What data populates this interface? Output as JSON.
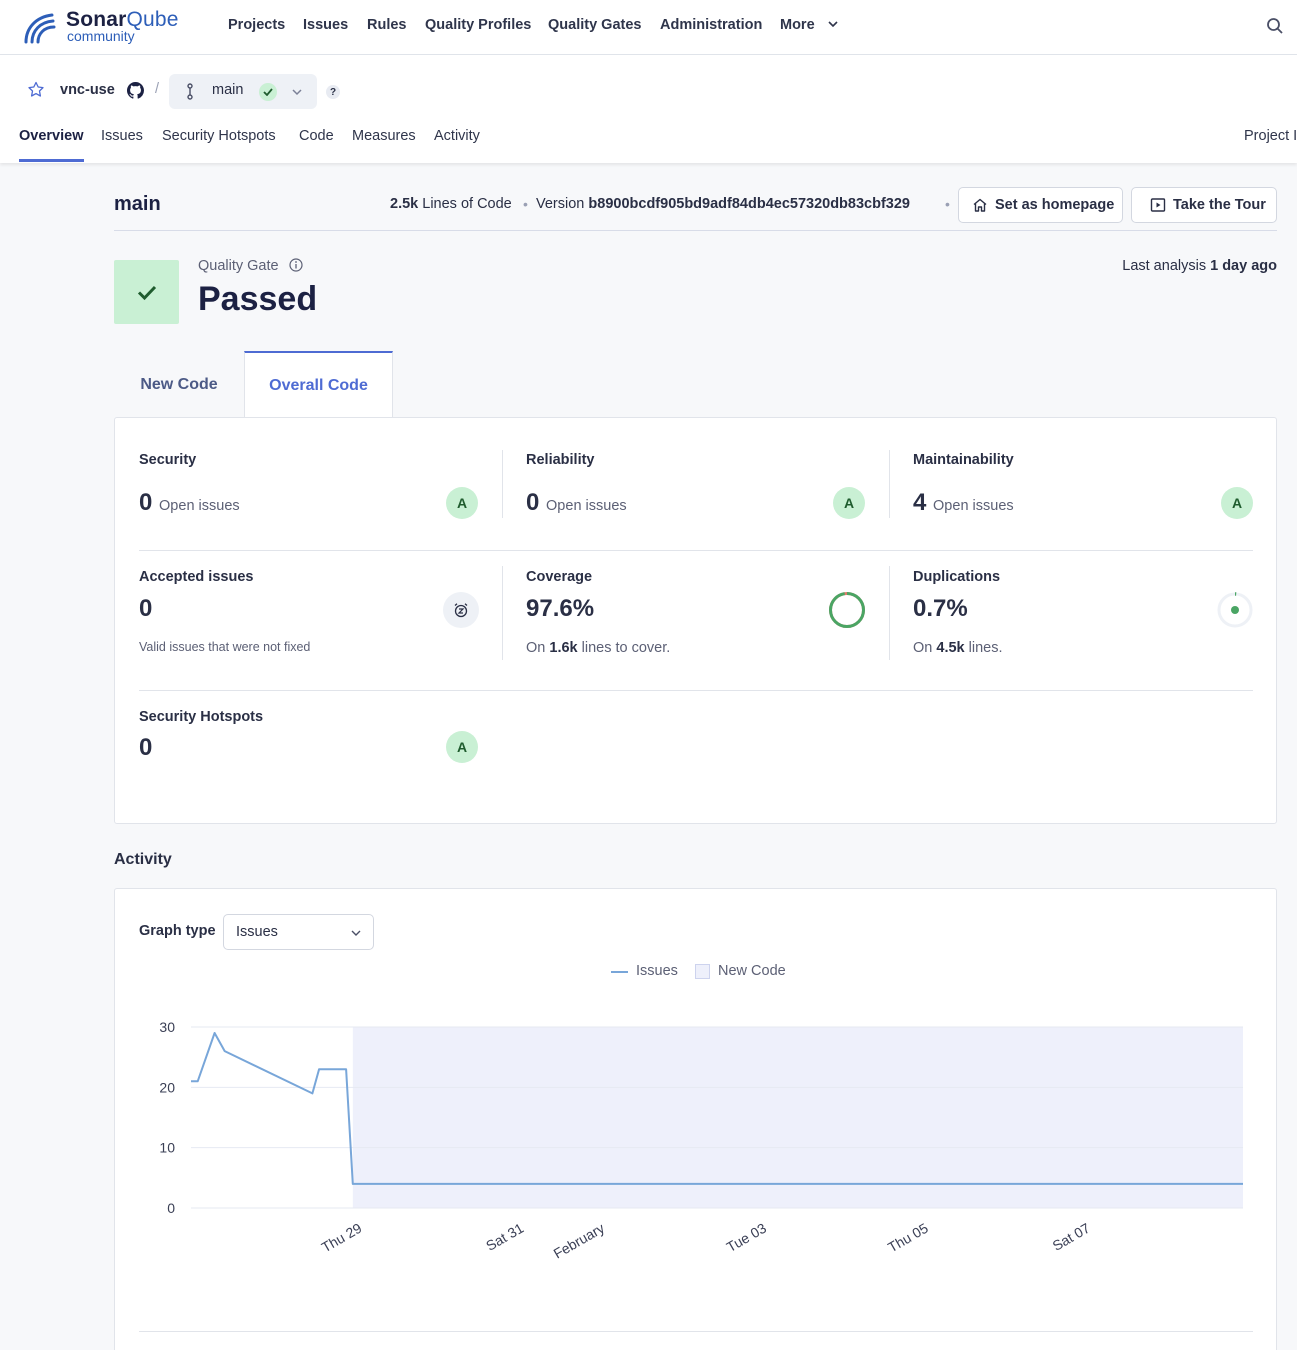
{
  "brand": {
    "name_a": "Sonar",
    "name_b": "Qube",
    "edition": "community"
  },
  "nav": {
    "items": [
      "Projects",
      "Issues",
      "Rules",
      "Quality Profiles",
      "Quality Gates",
      "Administration",
      "More"
    ]
  },
  "project": {
    "name": "vnc-use",
    "separator": "/",
    "branch": "main",
    "help": "?",
    "tabs": [
      "Overview",
      "Issues",
      "Security Hotspots",
      "Code",
      "Measures",
      "Activity"
    ],
    "settings_label": "Project I"
  },
  "branch_bar": {
    "title": "main",
    "loc_value": "2.5k",
    "loc_label": "Lines of Code",
    "version_label": "Version",
    "version_hash": "b8900bcdf905bd9adf84db4ec57320db83cbf329",
    "homepage_button": "Set as homepage",
    "tour_button": "Take the Tour"
  },
  "quality_gate": {
    "label": "Quality Gate",
    "status": "Passed",
    "last_analysis_label": "Last analysis",
    "last_analysis_value": "1 day ago"
  },
  "code_tabs": {
    "new": "New Code",
    "overall": "Overall Code"
  },
  "measures": {
    "security": {
      "title": "Security",
      "value": "0",
      "unit": "Open issues",
      "rating": "A"
    },
    "reliability": {
      "title": "Reliability",
      "value": "0",
      "unit": "Open issues",
      "rating": "A"
    },
    "maintainability": {
      "title": "Maintainability",
      "value": "4",
      "unit": "Open issues",
      "rating": "A"
    },
    "accepted": {
      "title": "Accepted issues",
      "value": "0",
      "note": "Valid issues that were not fixed"
    },
    "coverage": {
      "title": "Coverage",
      "value": "97.6%",
      "sub_pre": "On",
      "sub_value": "1.6k",
      "sub_post": "lines to cover.",
      "percent": 97.6
    },
    "duplications": {
      "title": "Duplications",
      "value": "0.7%",
      "sub_pre": "On",
      "sub_value": "4.5k",
      "sub_post": "lines.",
      "percent": 0.7
    },
    "hotspots": {
      "title": "Security Hotspots",
      "value": "0",
      "rating": "A"
    }
  },
  "activity": {
    "title": "Activity",
    "graph_type_label": "Graph type",
    "graph_type_value": "Issues",
    "legend_issues": "Issues",
    "legend_new_code": "New Code"
  },
  "colors": {
    "accent": "#4e6bd3",
    "pass_green": "#c9f0d4",
    "rating_text": "#1f5c2e",
    "coverage_ring": "#4aa564",
    "line": "#78a6d9",
    "new_code_fill": "#eef0fb"
  },
  "chart_data": {
    "type": "line",
    "series": [
      {
        "name": "Issues",
        "points": [
          [
            "Jan 27 00:00",
            21
          ],
          [
            "Jan 27 02:00",
            21
          ],
          [
            "Jan 27 07:00",
            29
          ],
          [
            "Jan 27 10:00",
            26
          ],
          [
            "Jan 28 12:00",
            19
          ],
          [
            "Jan 28 14:00",
            23
          ],
          [
            "Jan 28 22:00",
            23
          ],
          [
            "Jan 29 00:00",
            4
          ],
          [
            "Feb 09 00:00",
            4
          ]
        ]
      }
    ],
    "x_ticks": [
      "Thu 29",
      "Sat 31",
      "February",
      "Tue 03",
      "Thu 05",
      "Sat 07"
    ],
    "y_ticks": [
      0,
      10,
      20,
      30
    ],
    "ylim": [
      0,
      30
    ],
    "new_code_period_start": "Jan 29 00:00",
    "xlabel": "",
    "ylabel": "",
    "legend_placement": "top-center",
    "grid": true
  }
}
